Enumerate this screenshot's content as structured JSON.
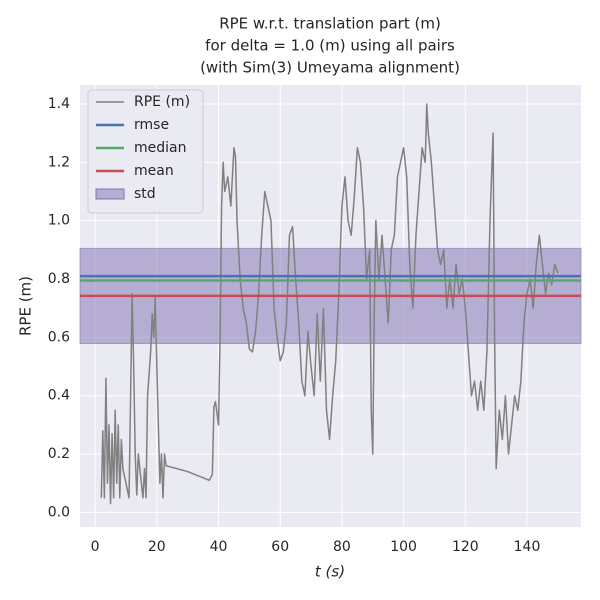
{
  "chart_data": {
    "type": "line",
    "title": [
      "RPE w.r.t. translation part (m)",
      "for delta = 1.0 (m) using all pairs",
      "(with Sim(3) Umeyama alignment)"
    ],
    "xlabel": "t (s)",
    "ylabel": "RPE (m)",
    "xlim": [
      -4.9,
      157.5
    ],
    "ylim": [
      -0.05,
      1.465
    ],
    "xticks": [
      0,
      20,
      40,
      60,
      80,
      100,
      120,
      140
    ],
    "yticks": [
      {
        "value": 0,
        "label": "0.0"
      },
      0.2,
      0.4,
      0.6,
      0.8,
      {
        "value": 1,
        "label": "1.0"
      },
      1.2,
      1.4
    ],
    "grid": true,
    "legend": "upper left",
    "series": [
      {
        "name": "RPE (m)",
        "color": "#808080",
        "x": [
          2,
          2.5,
          3,
          3.5,
          4,
          4.5,
          5,
          5.5,
          6,
          6.5,
          7,
          7.5,
          8,
          8.5,
          9,
          10,
          11,
          11.5,
          12,
          12.5,
          13,
          13.5,
          14,
          15,
          15.5,
          16,
          16.5,
          17,
          18,
          18.5,
          19,
          19.5,
          20,
          20.5,
          21,
          21.5,
          22,
          22.5,
          23,
          30,
          37,
          38,
          38.5,
          39,
          40,
          40.5,
          41,
          41.5,
          42,
          43,
          44,
          45,
          45.5,
          46,
          47,
          48,
          49,
          50,
          51,
          52,
          53,
          54,
          55,
          56,
          57,
          58,
          59,
          60,
          61,
          62,
          63,
          64,
          65,
          66,
          67,
          68,
          69,
          70,
          71,
          72,
          73,
          74,
          75,
          76,
          77,
          78,
          79,
          80,
          81,
          82,
          83,
          84,
          85,
          86,
          87,
          88,
          89,
          89.5,
          90,
          90.5,
          91,
          92,
          93,
          94,
          95,
          96,
          97,
          98,
          99,
          100,
          101,
          102,
          103,
          104,
          105,
          106,
          107,
          107.5,
          108,
          109,
          110,
          111,
          112,
          113,
          114,
          115,
          116,
          117,
          118,
          119,
          120,
          121,
          122,
          123,
          124,
          125,
          126,
          127,
          128,
          129,
          129.5,
          130,
          131,
          132,
          133,
          134,
          135,
          136,
          137,
          138,
          139,
          140,
          141,
          142,
          143,
          144,
          145,
          146,
          147,
          148,
          149,
          150
        ],
        "values": [
          0.05,
          0.28,
          0.05,
          0.46,
          0.1,
          0.3,
          0.03,
          0.27,
          0.05,
          0.35,
          0.1,
          0.3,
          0.05,
          0.25,
          0.15,
          0.1,
          0.05,
          0.4,
          0.75,
          0.5,
          0.2,
          0.06,
          0.2,
          0.1,
          0.05,
          0.15,
          0.05,
          0.4,
          0.55,
          0.68,
          0.6,
          0.74,
          0.5,
          0.3,
          0.1,
          0.2,
          0.05,
          0.2,
          0.16,
          0.14,
          0.11,
          0.13,
          0.36,
          0.38,
          0.3,
          0.6,
          1.05,
          1.2,
          1.1,
          1.15,
          1.05,
          1.25,
          1.22,
          1.0,
          0.8,
          0.7,
          0.65,
          0.56,
          0.55,
          0.62,
          0.75,
          0.95,
          1.1,
          1.05,
          1.0,
          0.7,
          0.6,
          0.52,
          0.55,
          0.65,
          0.95,
          0.98,
          0.8,
          0.65,
          0.45,
          0.4,
          0.62,
          0.5,
          0.4,
          0.68,
          0.45,
          0.7,
          0.35,
          0.25,
          0.4,
          0.52,
          0.75,
          1.05,
          1.15,
          1.0,
          0.95,
          1.08,
          1.25,
          1.2,
          1.05,
          0.8,
          0.9,
          0.35,
          0.2,
          0.7,
          1.0,
          0.8,
          0.95,
          0.8,
          0.65,
          0.9,
          0.95,
          1.15,
          1.2,
          1.25,
          1.15,
          0.85,
          0.7,
          0.95,
          1.1,
          1.25,
          1.2,
          1.4,
          1.3,
          1.2,
          1.05,
          0.9,
          0.85,
          0.9,
          0.7,
          0.8,
          0.7,
          0.85,
          0.75,
          0.8,
          0.7,
          0.55,
          0.4,
          0.45,
          0.35,
          0.45,
          0.35,
          0.55,
          1.0,
          1.3,
          0.6,
          0.15,
          0.35,
          0.25,
          0.4,
          0.2,
          0.3,
          0.4,
          0.35,
          0.45,
          0.65,
          0.75,
          0.8,
          0.7,
          0.85,
          0.95,
          0.85,
          0.75,
          0.82,
          0.78,
          0.85,
          0.82
        ]
      }
    ],
    "stats": [
      {
        "name": "rmse",
        "color": "#4c72b0",
        "value": 0.81
      },
      {
        "name": "median",
        "color": "#55a868",
        "value": 0.795
      },
      {
        "name": "mean",
        "color": "#c44e52",
        "value": 0.742
      }
    ],
    "std": {
      "name": "std",
      "color": "#8172b2",
      "value": 0.163
    }
  }
}
